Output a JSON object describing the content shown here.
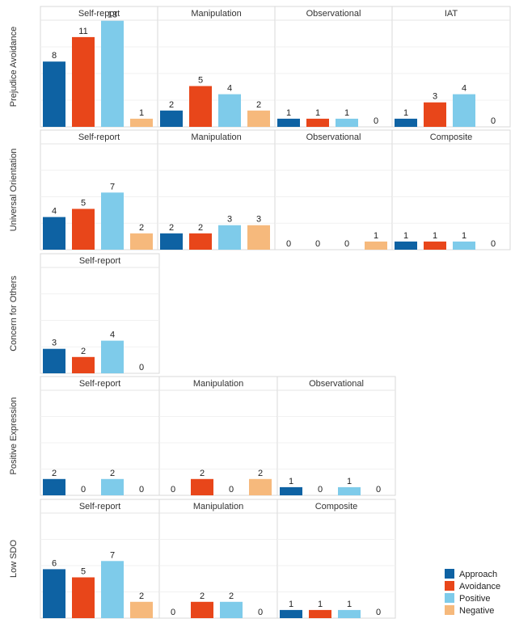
{
  "chart_data": {
    "type": "bar",
    "series_names": [
      "Approach",
      "Avoidance",
      "Positive",
      "Negative"
    ],
    "colors": [
      "#0e62a3",
      "#e8461a",
      "#7ecbea",
      "#f6b97c"
    ],
    "rows": [
      {
        "label": "Prejudice Avoidance",
        "panels": [
          {
            "title": "Self-report",
            "values": [
              8,
              11,
              13,
              1
            ]
          },
          {
            "title": "Manipulation",
            "values": [
              2,
              5,
              4,
              2
            ]
          },
          {
            "title": "Observational",
            "values": [
              1,
              1,
              1,
              0
            ]
          },
          {
            "title": "IAT",
            "values": [
              1,
              3,
              4,
              0
            ]
          }
        ]
      },
      {
        "label": "Universal Orientation",
        "panels": [
          {
            "title": "Self-report",
            "values": [
              4,
              5,
              7,
              2
            ]
          },
          {
            "title": "Manipulation",
            "values": [
              2,
              2,
              3,
              3
            ]
          },
          {
            "title": "Observational",
            "values": [
              0,
              0,
              0,
              1
            ]
          },
          {
            "title": "Composite",
            "values": [
              1,
              1,
              1,
              0
            ]
          }
        ]
      },
      {
        "label": "Concern for Others",
        "panels": [
          {
            "title": "Self-report",
            "values": [
              3,
              2,
              4,
              0
            ]
          }
        ]
      },
      {
        "label": "Positive Expression",
        "panels": [
          {
            "title": "Self-report",
            "values": [
              2,
              0,
              2,
              0
            ]
          },
          {
            "title": "Manipulation",
            "values": [
              0,
              2,
              0,
              2
            ]
          },
          {
            "title": "Observational",
            "values": [
              1,
              0,
              1,
              0
            ]
          }
        ]
      },
      {
        "label": "Low SDO",
        "panels": [
          {
            "title": "Self-report",
            "values": [
              6,
              5,
              7,
              2
            ]
          },
          {
            "title": "Manipulation",
            "values": [
              0,
              2,
              2,
              0
            ]
          },
          {
            "title": "Composite",
            "values": [
              1,
              1,
              1,
              0
            ]
          }
        ]
      }
    ],
    "legend": {
      "position": "bottom-right",
      "entries": [
        "Approach",
        "Avoidance",
        "Positive",
        "Negative"
      ]
    }
  }
}
